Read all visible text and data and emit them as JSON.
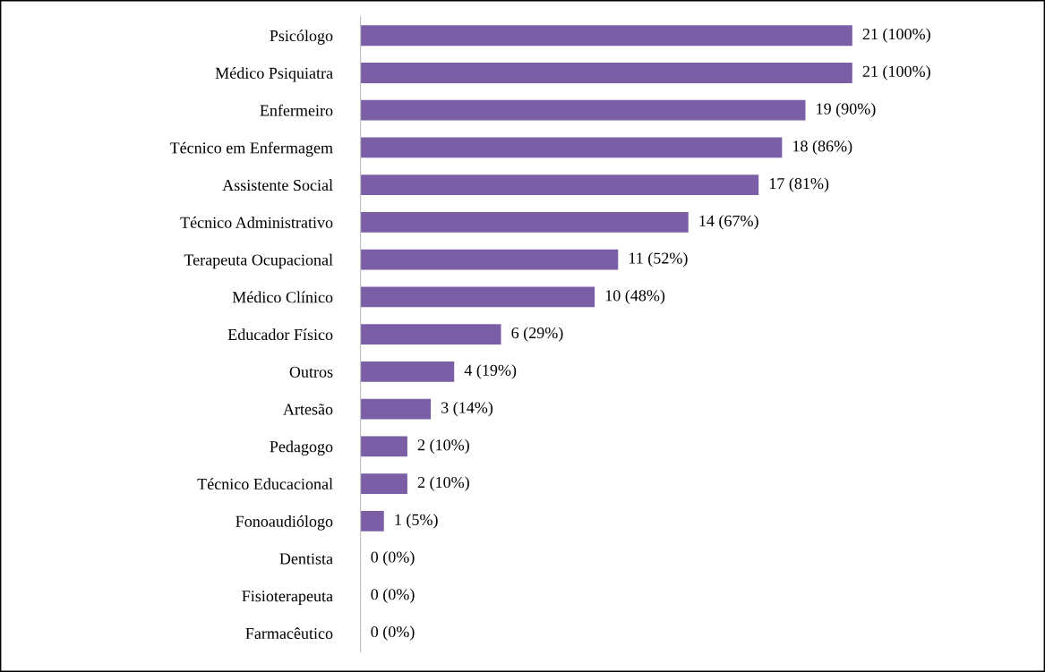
{
  "chart_data": {
    "type": "bar",
    "orientation": "horizontal",
    "color": "#7b5fa6",
    "categories": [
      "Psicólogo",
      "Médico Psiquiatra",
      "Enfermeiro",
      "Técnico em Enfermagem",
      "Assistente Social",
      "Técnico Administrativo",
      "Terapeuta Ocupacional",
      "Médico Clínico",
      "Educador Físico",
      "Outros",
      "Artesão",
      "Pedagogo",
      "Técnico Educacional",
      "Fonoaudiólogo",
      "Dentista",
      "Fisioterapeuta",
      "Farmacêutico"
    ],
    "values": [
      21,
      21,
      19,
      18,
      17,
      14,
      11,
      10,
      6,
      4,
      3,
      2,
      2,
      1,
      0,
      0,
      0
    ],
    "value_labels": [
      "21 (100%)",
      "21 (100%)",
      "19 (90%)",
      "18 (86%)",
      "17 (81%)",
      "14 (67%)",
      "11 (52%)",
      "10 (48%)",
      "6 (29%)",
      "4 (19%)",
      "3 (14%)",
      "2 (10%)",
      "2 (10%)",
      "1 (5%)",
      "0 (0%)",
      "0 (0%)",
      "0 (0%)"
    ],
    "grid": false,
    "legend": false
  }
}
